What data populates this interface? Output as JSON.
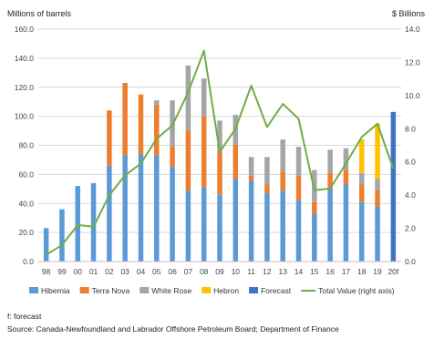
{
  "chart_data": {
    "type": "bar",
    "stacked": true,
    "left_axis_label": "Millions of barrels",
    "right_axis_label": "$ Billions",
    "ylim": [
      0,
      160
    ],
    "y2lim": [
      0,
      14
    ],
    "y_ticks": [
      "0.0",
      "20.0",
      "40.0",
      "60.0",
      "80.0",
      "100.0",
      "120.0",
      "140.0",
      "160.0"
    ],
    "y2_ticks": [
      "0.0",
      "2.0",
      "4.0",
      "6.0",
      "8.0",
      "10.0",
      "12.0",
      "14.0"
    ],
    "categories": [
      "98",
      "99",
      "00",
      "01",
      "02",
      "03",
      "04",
      "05",
      "06",
      "07",
      "08",
      "09",
      "10",
      "11",
      "12",
      "13",
      "14",
      "15",
      "16",
      "17",
      "18",
      "19",
      "20f"
    ],
    "series": [
      {
        "name": "Hibernia",
        "color": "#5b9bd5",
        "values": [
          23,
          36,
          52,
          54,
          66,
          73,
          74,
          73,
          65,
          49,
          51,
          46,
          57,
          56,
          47,
          49,
          42,
          33,
          50,
          53,
          41,
          38,
          0
        ]
      },
      {
        "name": "Terra Nova",
        "color": "#ed7d31",
        "values": [
          0,
          0,
          0,
          0,
          38,
          50,
          41,
          35,
          14,
          41,
          49,
          29,
          23,
          3,
          6,
          13,
          17,
          8,
          11,
          10,
          12,
          11,
          0
        ]
      },
      {
        "name": "White Rose",
        "color": "#a5a5a5",
        "values": [
          0,
          0,
          0,
          0,
          0,
          0,
          0,
          3,
          32,
          45,
          26,
          22,
          21,
          13,
          19,
          22,
          20,
          22,
          16,
          15,
          8,
          8,
          0
        ]
      },
      {
        "name": "Hebron",
        "color": "#ffc000",
        "values": [
          0,
          0,
          0,
          0,
          0,
          0,
          0,
          0,
          0,
          0,
          0,
          0,
          0,
          0,
          0,
          0,
          0,
          0,
          0,
          0,
          23,
          38,
          0
        ]
      },
      {
        "name": "Forecast",
        "color": "#4472c4",
        "values": [
          0,
          0,
          0,
          0,
          0,
          0,
          0,
          0,
          0,
          0,
          0,
          0,
          0,
          0,
          0,
          0,
          0,
          0,
          0,
          0,
          0,
          0,
          103
        ]
      }
    ],
    "line": {
      "name": "Total Value (right axis)",
      "color": "#70ad47",
      "axis": "right",
      "values": [
        0.4,
        1.0,
        2.2,
        2.1,
        4.0,
        5.2,
        5.9,
        7.4,
        8.2,
        10.2,
        12.7,
        6.6,
        8.0,
        10.6,
        8.1,
        9.5,
        8.6,
        4.3,
        4.4,
        5.9,
        7.5,
        8.3,
        5.6
      ]
    },
    "legend": [
      {
        "label": "Hibernia",
        "kind": "box",
        "color": "#5b9bd5"
      },
      {
        "label": "Terra Nova",
        "kind": "box",
        "color": "#ed7d31"
      },
      {
        "label": "White Rose",
        "kind": "box",
        "color": "#a5a5a5"
      },
      {
        "label": "Hebron",
        "kind": "box",
        "color": "#ffc000"
      },
      {
        "label": "Forecast",
        "kind": "box",
        "color": "#4472c4"
      },
      {
        "label": "Total Value (right axis)",
        "kind": "line",
        "color": "#70ad47"
      }
    ],
    "grid": true,
    "legend_position": "bottom"
  },
  "footnote": "f: forecast",
  "source": "Source: Canada-Newfoundland and Labrador Offshore Petroleum Board; Department of Finance"
}
